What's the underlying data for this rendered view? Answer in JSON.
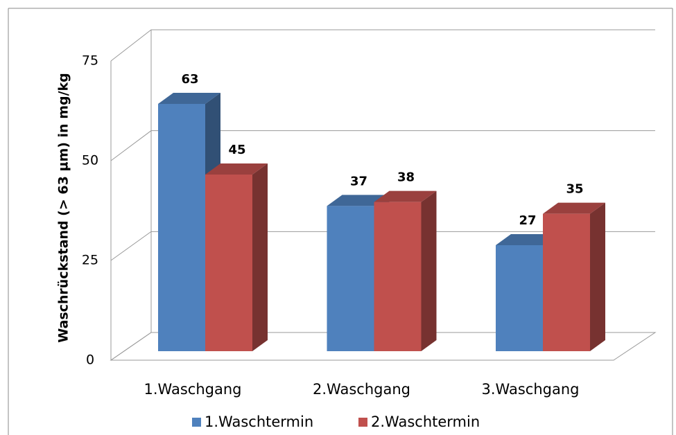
{
  "chart_data": {
    "type": "bar3d",
    "y_label": "Waschrückstand (> 63 µm) in mg/kg",
    "categories": [
      "1.Waschgang",
      "2.Waschgang",
      "3.Waschgang"
    ],
    "series": [
      {
        "name": "1.Waschtermin",
        "color": "#4f81bd",
        "values": [
          63,
          37,
          27
        ]
      },
      {
        "name": "2.Waschtermin",
        "color": "#c0504d",
        "values": [
          45,
          38,
          35
        ]
      }
    ],
    "ylim": [
      0,
      75
    ],
    "yticks": [
      0,
      25,
      50,
      75
    ],
    "grid": true,
    "legend": "bottom"
  }
}
